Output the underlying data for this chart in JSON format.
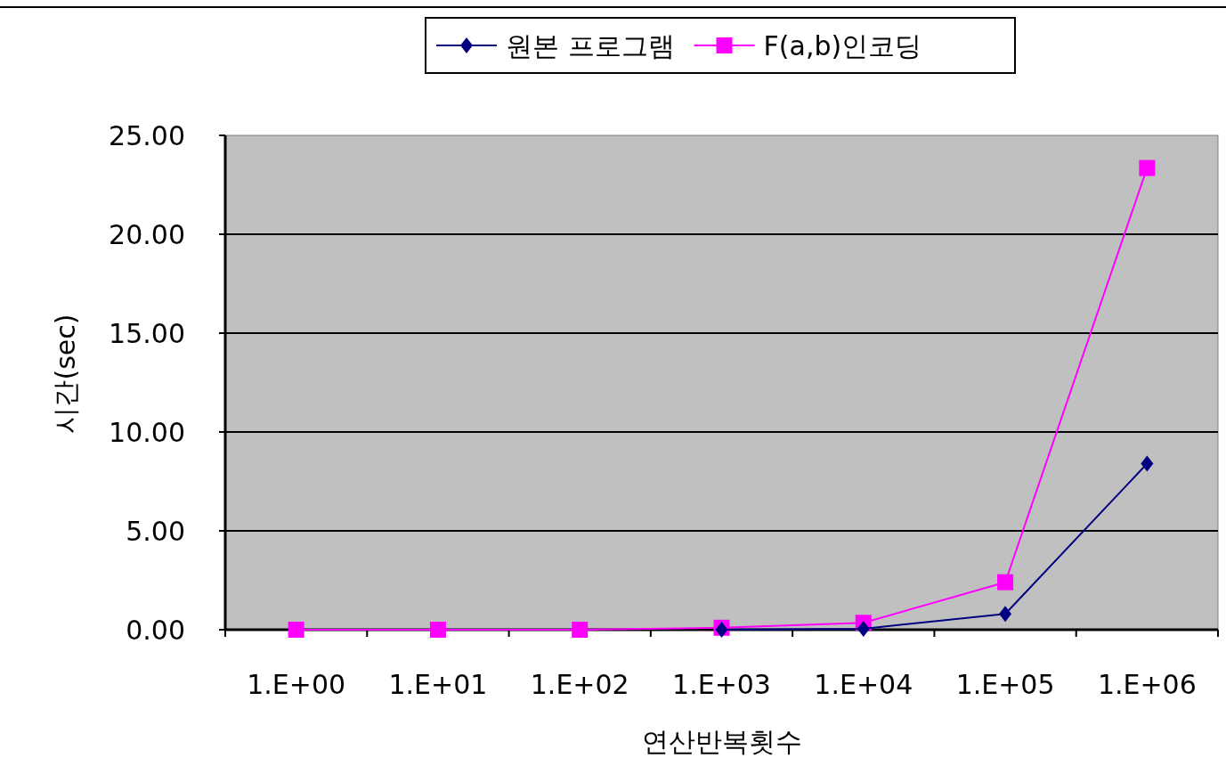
{
  "chart_data": {
    "type": "line",
    "xlabel": "연산반복횟수",
    "ylabel": "시간(sec)",
    "categories": [
      "1.E+00",
      "1.E+01",
      "1.E+02",
      "1.E+03",
      "1.E+04",
      "1.E+05",
      "1.E+06"
    ],
    "series": [
      {
        "name": "원본 프로그램",
        "color": "#000080",
        "marker": "diamond",
        "values": [
          null,
          null,
          null,
          0.0,
          0.05,
          0.8,
          8.4
        ]
      },
      {
        "name": "F(a,b)인코딩",
        "color": "#ff00ff",
        "marker": "square",
        "values": [
          0.0,
          0.0,
          0.0,
          0.1,
          0.35,
          2.4,
          23.35
        ]
      }
    ],
    "ylim": [
      0,
      25
    ],
    "yticks": [
      {
        "value": 0,
        "label": "0.00"
      },
      {
        "value": 5,
        "label": "5.00"
      },
      {
        "value": 10,
        "label": "10.00"
      },
      {
        "value": 15,
        "label": "15.00"
      },
      {
        "value": 20,
        "label": "20.00"
      },
      {
        "value": 25,
        "label": "25.00"
      }
    ],
    "grid": "y",
    "legend": "top"
  }
}
